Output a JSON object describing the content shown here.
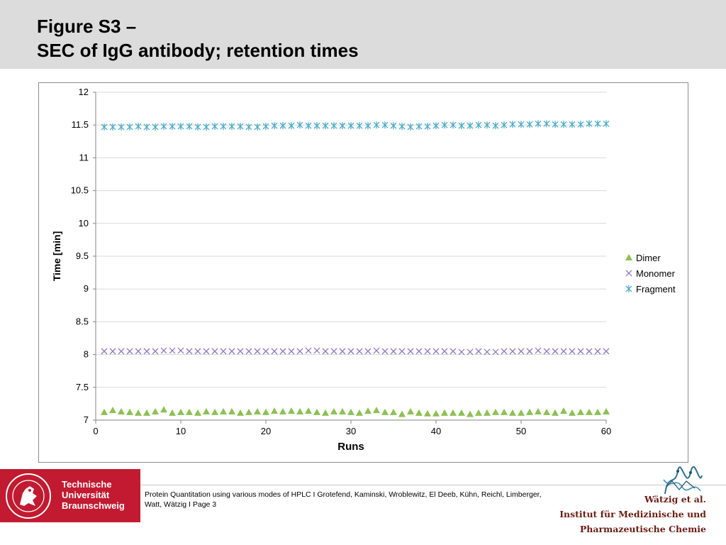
{
  "slide": {
    "title_line1": "Figure S3 –",
    "title_line2": "SEC of IgG antibody; retention times"
  },
  "footer": {
    "university": [
      "Technische",
      "Universität",
      "Braunschweig"
    ],
    "citation": "Protein Quantitation using various modes of HPLC I Grotefend, Kaminski, Wroblewitz, El Deeb, Kühn, Reichl, Limberger, Watt, Wätzig I Page 3",
    "institute": [
      "Wätzig et al.",
      "Institut für Medizinische und",
      "Pharmazeutische Chemie"
    ]
  },
  "colors": {
    "header_bg": "#dcdcdc",
    "logo_bg": "#c21a30",
    "dimer": "#8cc152",
    "monomer": "#8e7cc3",
    "fragment": "#4bacc6",
    "grid": "#d9d9d9",
    "institute_text": "#6b1e14"
  },
  "chart_data": {
    "type": "scatter",
    "title": "",
    "xlabel": "Runs",
    "ylabel": "Time [min]",
    "xlim": [
      0,
      60
    ],
    "ylim": [
      7,
      12
    ],
    "xticks": [
      0,
      10,
      20,
      30,
      40,
      50,
      60
    ],
    "yticks": [
      7,
      7.5,
      8,
      8.5,
      9,
      9.5,
      10,
      10.5,
      11,
      11.5,
      12
    ],
    "ytick_labels": [
      "7",
      "7.5",
      "8",
      "8.5",
      "9",
      "9.5",
      "10",
      "10.5",
      "11",
      "11.5",
      "12"
    ],
    "grid": "horizontal",
    "legend": "right",
    "series": [
      {
        "name": "Dimer",
        "marker": "triangle",
        "color": "#8cc152",
        "x": [
          1,
          2,
          3,
          4,
          5,
          6,
          7,
          8,
          9,
          10,
          11,
          12,
          13,
          14,
          15,
          16,
          17,
          18,
          19,
          20,
          21,
          22,
          23,
          24,
          25,
          26,
          27,
          28,
          29,
          30,
          31,
          32,
          33,
          34,
          35,
          36,
          37,
          38,
          39,
          40,
          41,
          42,
          43,
          44,
          45,
          46,
          47,
          48,
          49,
          50,
          51,
          52,
          53,
          54,
          55,
          56,
          57,
          58,
          59,
          60
        ],
        "y": [
          7.12,
          7.15,
          7.13,
          7.12,
          7.11,
          7.11,
          7.13,
          7.16,
          7.11,
          7.12,
          7.12,
          7.11,
          7.13,
          7.12,
          7.13,
          7.13,
          7.11,
          7.12,
          7.13,
          7.12,
          7.14,
          7.13,
          7.14,
          7.13,
          7.14,
          7.12,
          7.11,
          7.13,
          7.13,
          7.12,
          7.11,
          7.14,
          7.15,
          7.12,
          7.12,
          7.09,
          7.13,
          7.11,
          7.1,
          7.1,
          7.11,
          7.11,
          7.11,
          7.09,
          7.11,
          7.11,
          7.12,
          7.12,
          7.11,
          7.11,
          7.12,
          7.13,
          7.12,
          7.11,
          7.14,
          7.11,
          7.12,
          7.12,
          7.12,
          7.13
        ]
      },
      {
        "name": "Monomer",
        "marker": "x",
        "color": "#8e7cc3",
        "x": [
          1,
          2,
          3,
          4,
          5,
          6,
          7,
          8,
          9,
          10,
          11,
          12,
          13,
          14,
          15,
          16,
          17,
          18,
          19,
          20,
          21,
          22,
          23,
          24,
          25,
          26,
          27,
          28,
          29,
          30,
          31,
          32,
          33,
          34,
          35,
          36,
          37,
          38,
          39,
          40,
          41,
          42,
          43,
          44,
          45,
          46,
          47,
          48,
          49,
          50,
          51,
          52,
          53,
          54,
          55,
          56,
          57,
          58,
          59,
          60
        ],
        "y": [
          8.05,
          8.05,
          8.05,
          8.05,
          8.05,
          8.05,
          8.05,
          8.06,
          8.06,
          8.06,
          8.05,
          8.05,
          8.05,
          8.05,
          8.05,
          8.05,
          8.05,
          8.05,
          8.05,
          8.05,
          8.05,
          8.05,
          8.05,
          8.05,
          8.06,
          8.06,
          8.05,
          8.05,
          8.05,
          8.05,
          8.05,
          8.05,
          8.06,
          8.05,
          8.05,
          8.05,
          8.05,
          8.05,
          8.05,
          8.05,
          8.05,
          8.05,
          8.04,
          8.04,
          8.05,
          8.04,
          8.04,
          8.05,
          8.05,
          8.05,
          8.05,
          8.06,
          8.05,
          8.05,
          8.05,
          8.05,
          8.05,
          8.05,
          8.05,
          8.05
        ]
      },
      {
        "name": "Fragment",
        "marker": "asterisk",
        "color": "#4bacc6",
        "x": [
          1,
          2,
          3,
          4,
          5,
          6,
          7,
          8,
          9,
          10,
          11,
          12,
          13,
          14,
          15,
          16,
          17,
          18,
          19,
          20,
          21,
          22,
          23,
          24,
          25,
          26,
          27,
          28,
          29,
          30,
          31,
          32,
          33,
          34,
          35,
          36,
          37,
          38,
          39,
          40,
          41,
          42,
          43,
          44,
          45,
          46,
          47,
          48,
          49,
          50,
          51,
          52,
          53,
          54,
          55,
          56,
          57,
          58,
          59,
          60
        ],
        "y": [
          11.47,
          11.47,
          11.47,
          11.47,
          11.48,
          11.47,
          11.47,
          11.48,
          11.48,
          11.48,
          11.48,
          11.47,
          11.47,
          11.48,
          11.48,
          11.48,
          11.48,
          11.47,
          11.47,
          11.48,
          11.49,
          11.49,
          11.49,
          11.5,
          11.49,
          11.49,
          11.49,
          11.49,
          11.49,
          11.49,
          11.49,
          11.49,
          11.5,
          11.5,
          11.49,
          11.48,
          11.47,
          11.48,
          11.48,
          11.49,
          11.5,
          11.5,
          11.49,
          11.49,
          11.5,
          11.5,
          11.49,
          11.5,
          11.51,
          11.51,
          11.51,
          11.52,
          11.52,
          11.51,
          11.51,
          11.51,
          11.51,
          11.52,
          11.52,
          11.52
        ]
      }
    ]
  }
}
